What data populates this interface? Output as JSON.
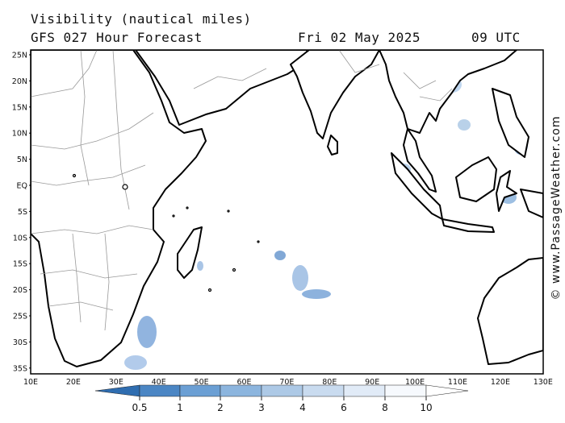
{
  "header": {
    "title": "Visibility (nautical miles)",
    "subtitle": "GFS 027 Hour Forecast",
    "date": "Fri 02 May 2025",
    "time": "09 UTC"
  },
  "credit": "© www.PassageWeather.com",
  "map": {
    "region": "Indian Ocean",
    "lat_labels": [
      "25N",
      "20N",
      "15N",
      "10N",
      "5N",
      "EQ",
      "5S",
      "10S",
      "15S",
      "20S",
      "25S",
      "30S",
      "35S"
    ],
    "lon_labels": [
      "10E",
      "20E",
      "30E",
      "40E",
      "50E",
      "60E",
      "70E",
      "80E",
      "90E",
      "100E",
      "110E",
      "120E",
      "130E"
    ],
    "lon_range": [
      10,
      130
    ],
    "lat_range": [
      -36,
      26
    ],
    "land_color": "#ffffff",
    "coast_color": "#000000",
    "border_color": "#999999"
  },
  "legend": {
    "labels": [
      "0.5",
      "1",
      "2",
      "3",
      "4",
      "6",
      "8",
      "10"
    ],
    "colors": [
      "#2f6db0",
      "#4b86c4",
      "#6b9fd4",
      "#8cb5de",
      "#adc9e6",
      "#c9dbef",
      "#e1ebf7",
      "#f6f9fd",
      "#ffffff"
    ]
  }
}
